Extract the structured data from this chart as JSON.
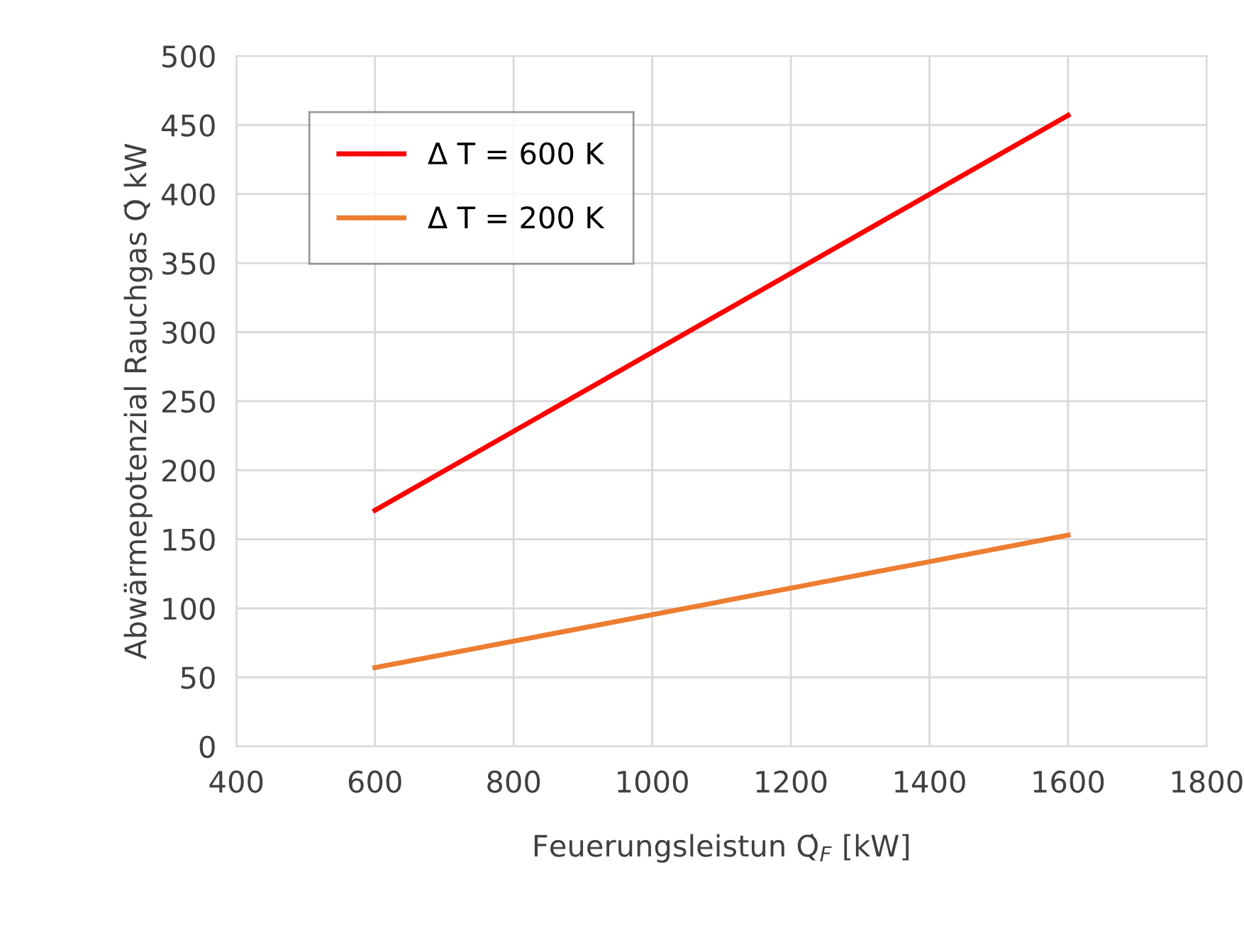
{
  "chart_data": {
    "type": "line",
    "xlabel": "Feuerungsleistun Q̇$_{F}$ [kW]",
    "ylabel": "Abwärmepotenzial Rauchgas Q̇ kW",
    "x": [
      600,
      1600
    ],
    "series": [
      {
        "name": "Δ T = 600 K",
        "color": "#ff0000",
        "values": [
          171,
          457
        ]
      },
      {
        "name": "Δ T = 200 K",
        "color": "#ed7d31",
        "values": [
          57,
          153
        ]
      }
    ],
    "xlim": [
      400,
      1800
    ],
    "xticks": [
      400,
      600,
      800,
      1000,
      1200,
      1400,
      1600,
      1800
    ],
    "ylim": [
      0,
      500
    ],
    "yticks": [
      0,
      50,
      100,
      150,
      200,
      250,
      300,
      350,
      400,
      450,
      500
    ],
    "grid": true,
    "legend": "top left",
    "marker": "none",
    "line_style": "solid"
  }
}
